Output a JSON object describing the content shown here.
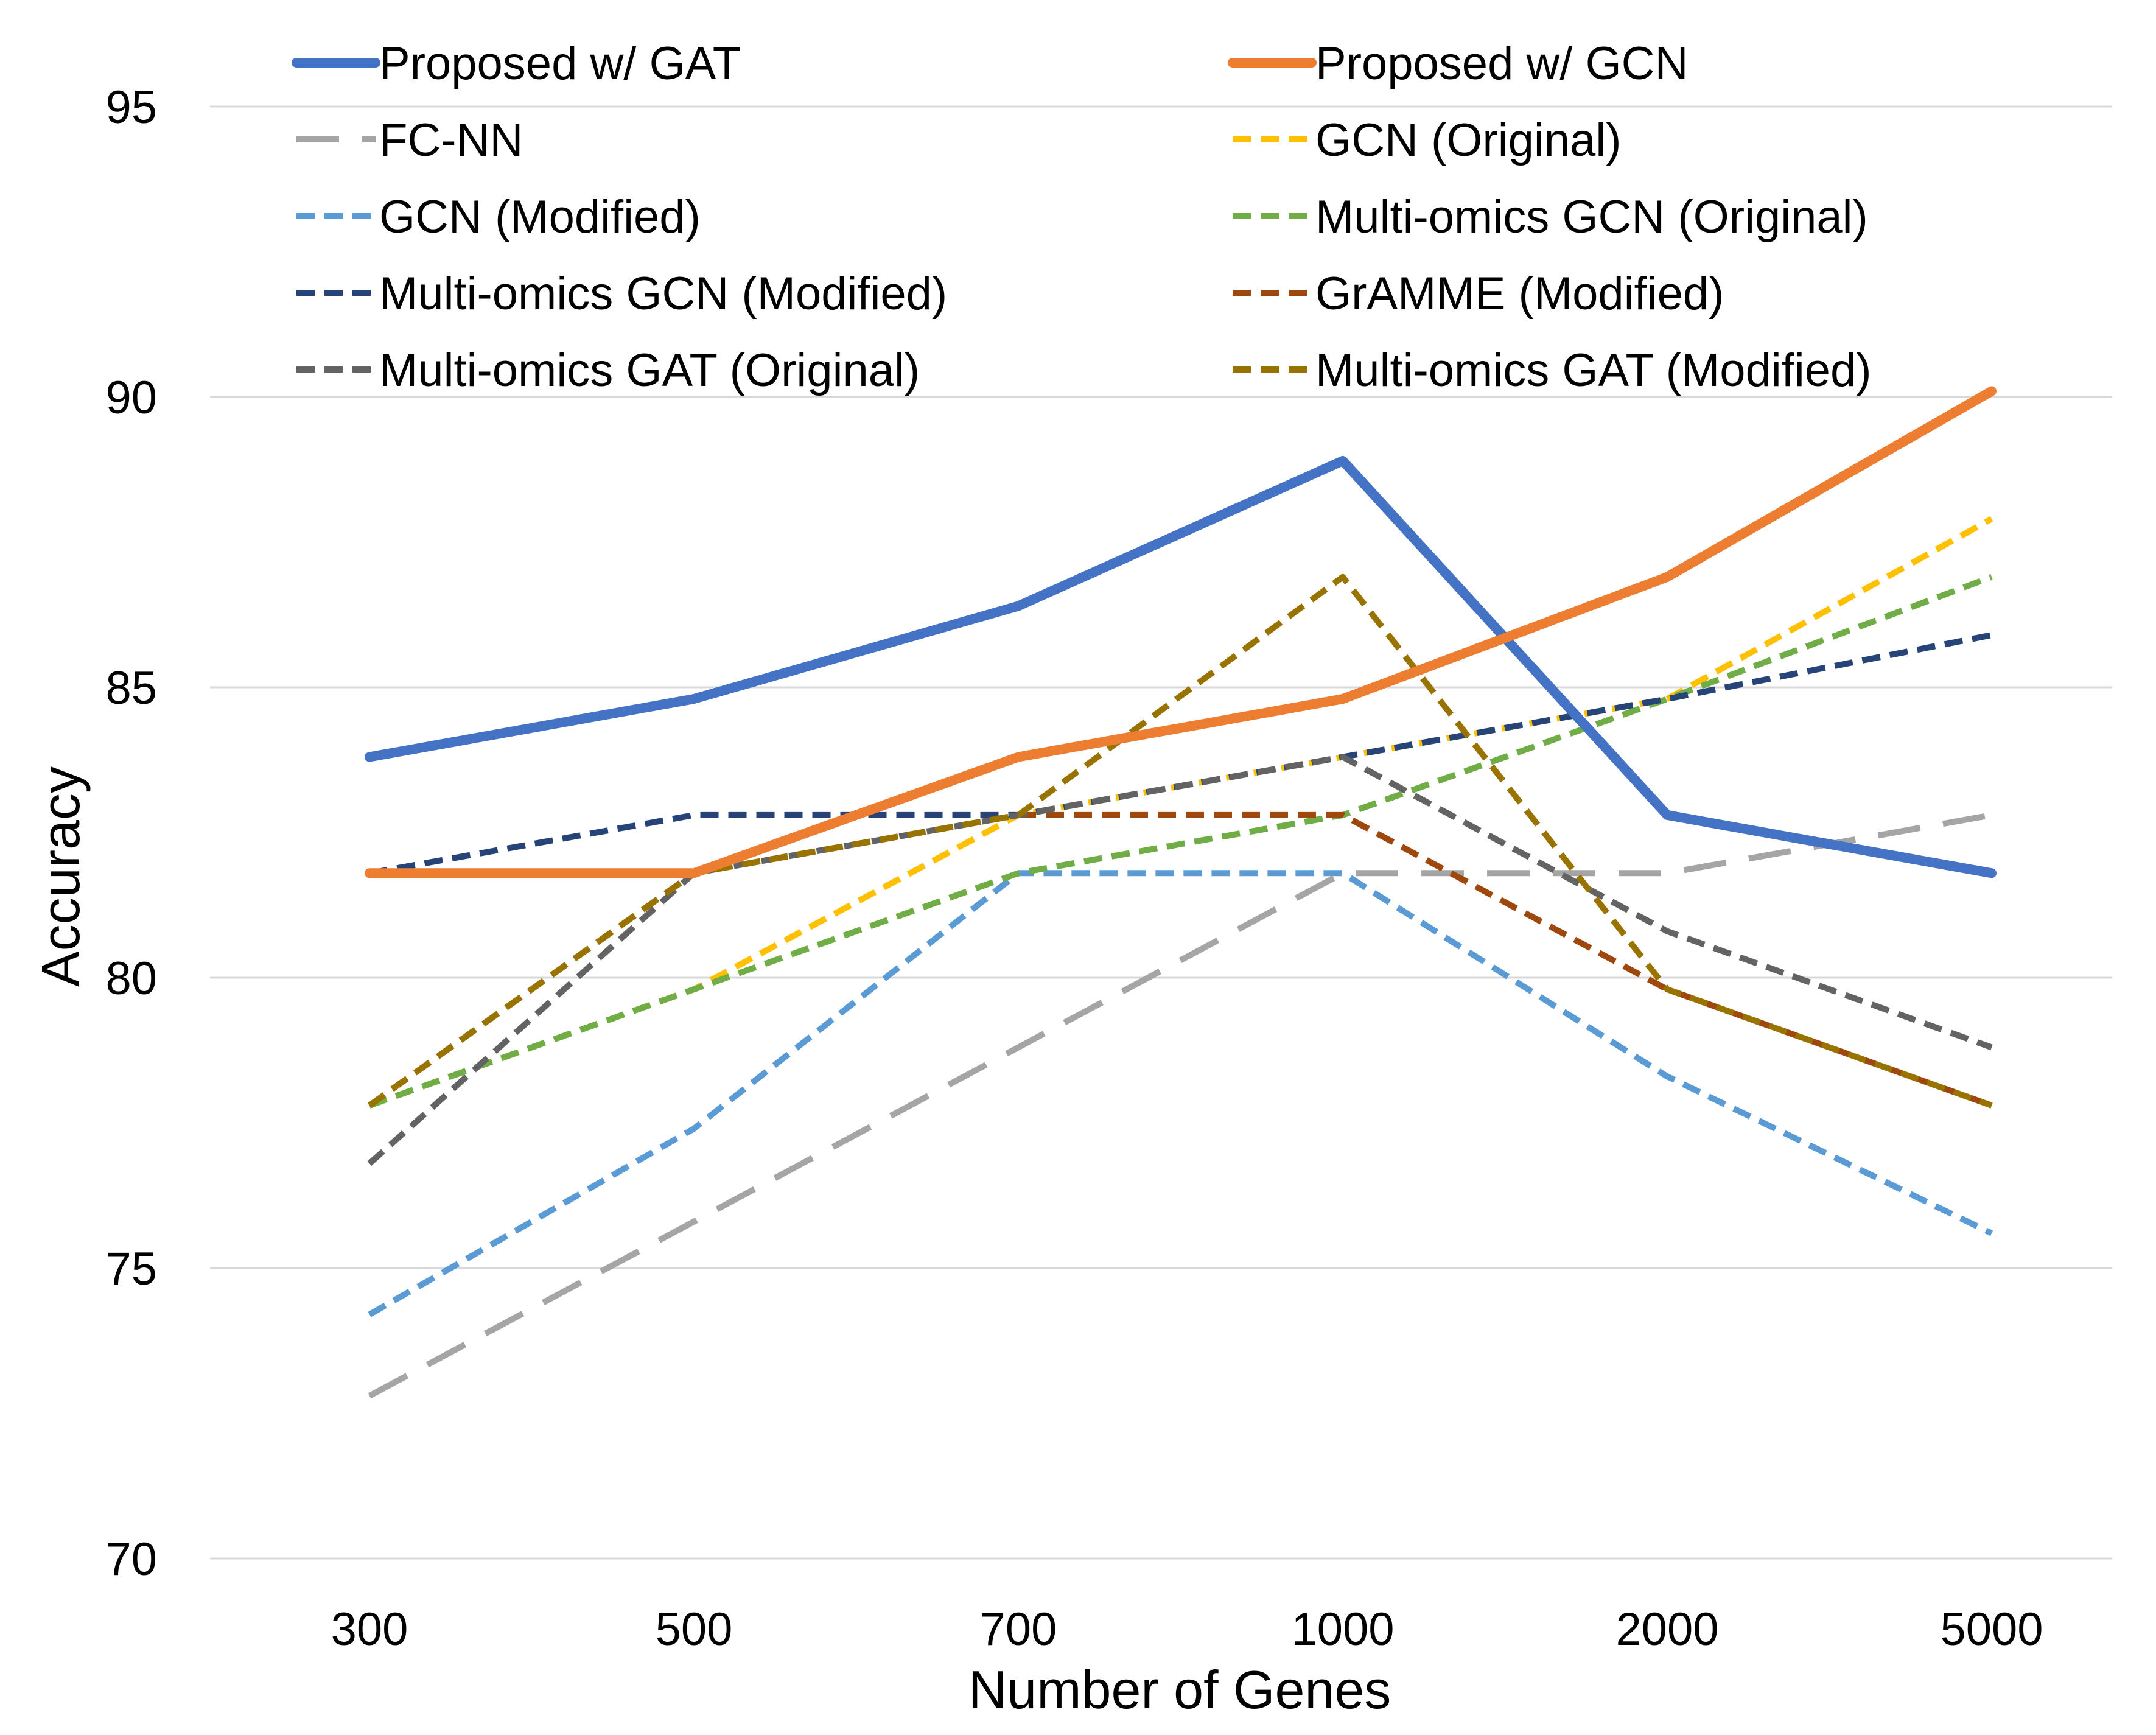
{
  "chart_data": {
    "type": "line",
    "title": "",
    "xlabel": "Number of Genes",
    "ylabel": "Accuracy",
    "categories": [
      "300",
      "500",
      "700",
      "1000",
      "2000",
      "5000"
    ],
    "ylim": [
      70,
      95
    ],
    "yticks": [
      70,
      75,
      80,
      85,
      90,
      95
    ],
    "grid": true,
    "legend_position": "top",
    "series": [
      {
        "name": "Proposed w/ GAT",
        "color": "#4472c4",
        "style": "solid",
        "values": [
          83.8,
          84.8,
          86.4,
          88.9,
          82.8,
          81.8
        ]
      },
      {
        "name": "Proposed w/ GCN",
        "color": "#ed7d31",
        "style": "solid",
        "values": [
          81.8,
          81.8,
          83.8,
          84.8,
          86.9,
          90.1
        ]
      },
      {
        "name": "FC-NN",
        "color": "#a5a5a5",
        "style": "longdash",
        "values": [
          72.8,
          75.8,
          78.8,
          81.8,
          81.8,
          82.8
        ]
      },
      {
        "name": "GCN (Original)",
        "color": "#ffc000",
        "style": "dash",
        "values": [
          77.8,
          79.8,
          82.8,
          83.8,
          84.8,
          87.9
        ]
      },
      {
        "name": "GCN (Modified)",
        "color": "#5b9bd5",
        "style": "dash",
        "values": [
          74.2,
          77.4,
          81.8,
          81.8,
          78.3,
          75.6
        ]
      },
      {
        "name": "Multi-omics GCN (Original)",
        "color": "#70ad47",
        "style": "dash",
        "values": [
          77.8,
          79.8,
          81.8,
          82.8,
          84.8,
          86.9
        ]
      },
      {
        "name": "Multi-omics GCN (Modified)",
        "color": "#264478",
        "style": "dash",
        "values": [
          81.8,
          82.8,
          82.8,
          83.8,
          84.8,
          85.9
        ]
      },
      {
        "name": "GrAMME (Modified)",
        "color": "#9e480e",
        "style": "dash",
        "values": [
          77.8,
          81.8,
          82.8,
          82.8,
          79.8,
          77.8
        ]
      },
      {
        "name": "Multi-omics GAT (Original)",
        "color": "#636363",
        "style": "dash",
        "values": [
          76.8,
          81.8,
          82.8,
          83.8,
          80.8,
          78.8
        ]
      },
      {
        "name": "Multi-omics GAT (Modified)",
        "color": "#997300",
        "style": "dash",
        "values": [
          77.8,
          81.8,
          82.8,
          86.9,
          79.8,
          77.8
        ]
      }
    ]
  }
}
